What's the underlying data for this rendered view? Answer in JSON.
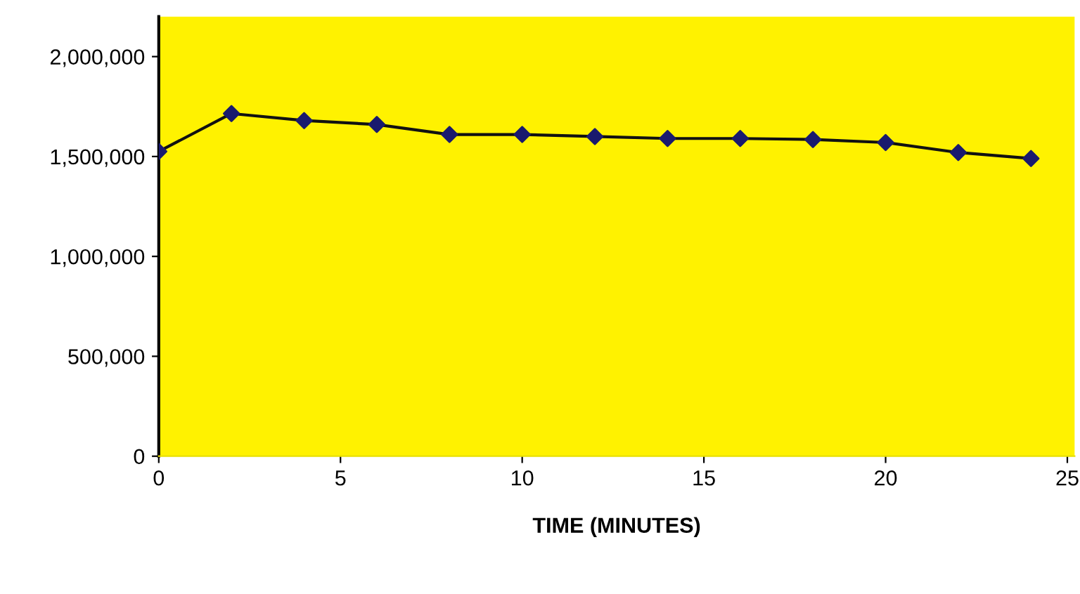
{
  "chart_data": {
    "type": "line",
    "xlabel": "TIME (MINUTES)",
    "x": [
      0,
      2,
      4,
      6,
      8,
      10,
      12,
      14,
      16,
      18,
      20,
      22,
      24
    ],
    "series": [
      {
        "color": "#1a1a6e",
        "values": [
          1525000,
          1715000,
          1680000,
          1660000,
          1610000,
          1610000,
          1600000,
          1590000,
          1590000,
          1585000,
          1570000,
          1520000,
          1490000
        ]
      }
    ],
    "xlim": [
      0,
      25.2
    ],
    "xticks": [
      0,
      5,
      10,
      15,
      20,
      25
    ],
    "ylim": [
      0,
      2200000
    ],
    "yticks": [
      {
        "value": 0,
        "label": "0"
      },
      {
        "value": 500000,
        "label": "500,000"
      },
      {
        "value": 1000000,
        "label": "1,000,000"
      },
      {
        "value": 1500000,
        "label": "1,500,000"
      },
      {
        "value": 2000000,
        "label": "2,000,000"
      }
    ],
    "grid": false,
    "marker": "diamond",
    "line_style": "solid"
  }
}
